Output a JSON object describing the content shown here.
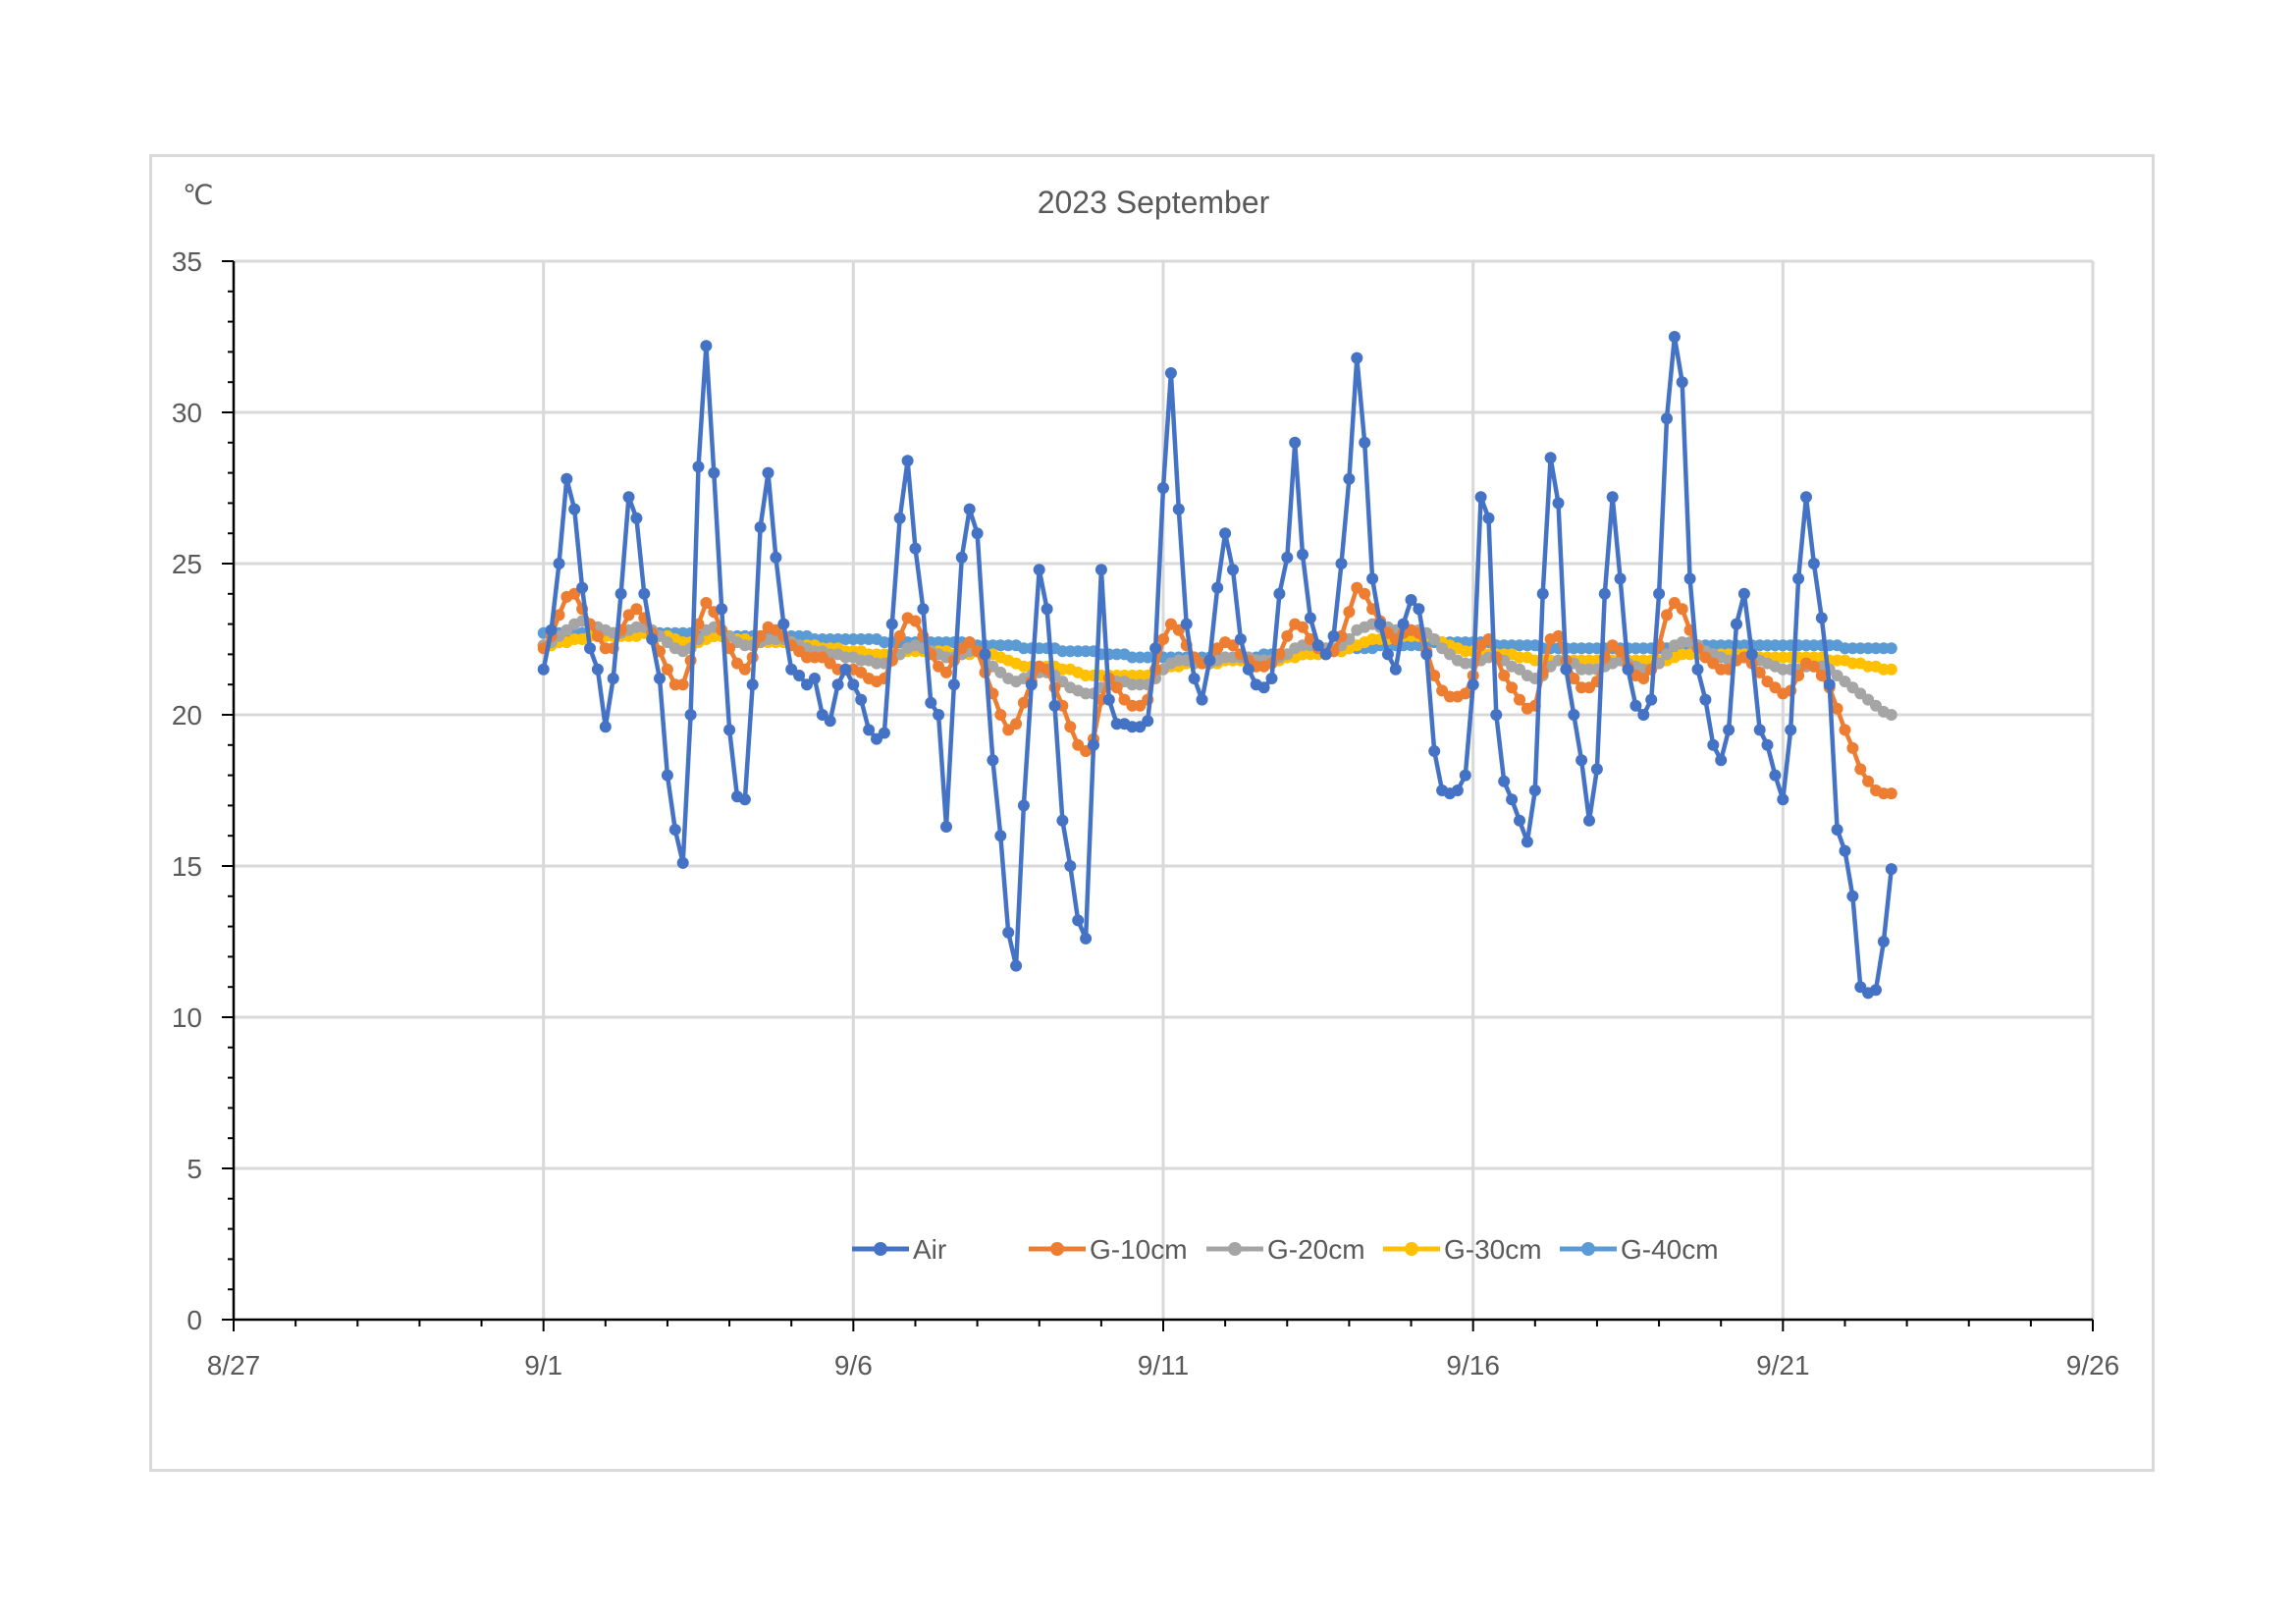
{
  "chart_data": {
    "type": "line",
    "title": "2023 September",
    "ylabel": "℃",
    "xlabel": "",
    "ylim": [
      0,
      35
    ],
    "y_ticks": [
      "0",
      "5",
      "10",
      "15",
      "20",
      "25",
      "30",
      "35"
    ],
    "x_range_days": [
      "2023-08-27",
      "2023-09-26"
    ],
    "x_ticks": [
      "8/27",
      "9/1",
      "9/6",
      "9/11",
      "9/16",
      "9/21",
      "9/26"
    ],
    "grid": true,
    "legend_position": "bottom-inside",
    "x_start_date": "2023-09-01",
    "samples_per_day": 8,
    "series": [
      {
        "name": "Air",
        "color": "#4472C4",
        "values": [
          21.5,
          22.8,
          25,
          27.8,
          26.8,
          24.2,
          22.2,
          21.5,
          19.6,
          21.2,
          24,
          27.2,
          26.5,
          24,
          22.5,
          21.2,
          18,
          16.2,
          15.1,
          20,
          28.2,
          32.2,
          28,
          23.5,
          19.5,
          17.3,
          17.2,
          21,
          26.2,
          28,
          25.2,
          23,
          21.5,
          21.3,
          21,
          21.2,
          20,
          19.8,
          21,
          21.5,
          21,
          20.5,
          19.5,
          19.2,
          19.4,
          23,
          26.5,
          28.4,
          25.5,
          23.5,
          20.4,
          20,
          16.3,
          21,
          25.2,
          26.8,
          26,
          22,
          18.5,
          16,
          12.8,
          11.7,
          17,
          21,
          24.8,
          23.5,
          20.3,
          16.5,
          15,
          13.2,
          12.6,
          19,
          24.8,
          20.5,
          19.7,
          19.7,
          19.6,
          19.6,
          19.8,
          22.2,
          27.5,
          31.3,
          26.8,
          23,
          21.2,
          20.5,
          21.8,
          24.2,
          26,
          24.8,
          22.5,
          21.5,
          21,
          20.9,
          21.2,
          24,
          25.2,
          29,
          25.3,
          23.2,
          22.3,
          22,
          22.6,
          25,
          27.8,
          31.8,
          29,
          24.5,
          23,
          22,
          21.5,
          23,
          23.8,
          23.5,
          22,
          18.8,
          17.5,
          17.4,
          17.5,
          18,
          21,
          27.2,
          26.5,
          20,
          17.8,
          17.2,
          16.5,
          15.8,
          17.5,
          24,
          28.5,
          27,
          21.5,
          20,
          18.5,
          16.5,
          18.2,
          24,
          27.2,
          24.5,
          21.5,
          20.3,
          20,
          20.5,
          24,
          29.8,
          32.5,
          31,
          24.5,
          21.5,
          20.5,
          19,
          18.5,
          19.5,
          23,
          24,
          22,
          19.5,
          19,
          18,
          17.2,
          19.5,
          24.5,
          27.2,
          25,
          23.2,
          21,
          16.2,
          15.5,
          14,
          11,
          10.8,
          10.9,
          12.5,
          14.9
        ]
      },
      {
        "name": "G-10cm",
        "color": "#ED7D31",
        "values": [
          22.2,
          22.6,
          23.3,
          23.9,
          24,
          23.5,
          23,
          22.6,
          22.2,
          22.2,
          22.8,
          23.3,
          23.5,
          23.2,
          22.7,
          22.1,
          21.5,
          21,
          21,
          21.8,
          23,
          23.7,
          23.4,
          22.8,
          22.2,
          21.7,
          21.5,
          21.9,
          22.6,
          22.9,
          22.8,
          22.6,
          22.3,
          22.1,
          21.9,
          21.9,
          21.9,
          21.7,
          21.5,
          21.5,
          21.5,
          21.4,
          21.2,
          21.1,
          21.2,
          21.8,
          22.6,
          23.2,
          23.1,
          22.6,
          22,
          21.6,
          21.4,
          21.8,
          22.2,
          22.4,
          22.1,
          21.4,
          20.7,
          20,
          19.5,
          19.7,
          20.4,
          21.1,
          21.6,
          21.5,
          20.9,
          20.3,
          19.6,
          19,
          18.8,
          19.2,
          20.5,
          21.2,
          20.9,
          20.5,
          20.3,
          20.3,
          20.5,
          21.5,
          22.5,
          23,
          22.8,
          22.3,
          21.9,
          21.7,
          21.8,
          22.2,
          22.4,
          22.3,
          22,
          21.8,
          21.6,
          21.6,
          21.7,
          22,
          22.6,
          23,
          22.9,
          22.5,
          22.2,
          22,
          22.1,
          22.6,
          23.4,
          24.2,
          24,
          23.5,
          23.1,
          22.7,
          22.5,
          22.7,
          22.8,
          22.7,
          22.1,
          21.3,
          20.8,
          20.6,
          20.6,
          20.7,
          21.3,
          22.3,
          22.5,
          21.9,
          21.3,
          20.9,
          20.5,
          20.2,
          20.3,
          21.4,
          22.5,
          22.6,
          21.8,
          21.2,
          20.9,
          20.9,
          21.1,
          21.9,
          22.3,
          22.1,
          21.6,
          21.3,
          21.2,
          21.5,
          22.3,
          23.3,
          23.7,
          23.5,
          22.8,
          22.2,
          21.9,
          21.7,
          21.5,
          21.5,
          21.8,
          21.9,
          21.7,
          21.4,
          21.1,
          20.9,
          20.7,
          20.8,
          21.3,
          21.7,
          21.6,
          21.3,
          20.9,
          20.2,
          19.5,
          18.9,
          18.2,
          17.8,
          17.5,
          17.4,
          17.4
        ]
      },
      {
        "name": "G-20cm",
        "color": "#A5A5A5",
        "values": [
          22.3,
          22.4,
          22.6,
          22.8,
          23,
          23.1,
          23,
          22.9,
          22.8,
          22.7,
          22.7,
          22.8,
          22.9,
          22.9,
          22.8,
          22.6,
          22.4,
          22.2,
          22.1,
          22.2,
          22.5,
          22.8,
          22.9,
          22.8,
          22.6,
          22.4,
          22.3,
          22.3,
          22.4,
          22.5,
          22.5,
          22.5,
          22.4,
          22.3,
          22.2,
          22.1,
          22.1,
          22,
          22,
          21.9,
          21.9,
          21.8,
          21.8,
          21.7,
          21.7,
          21.8,
          22,
          22.2,
          22.3,
          22.2,
          22.1,
          22,
          21.9,
          21.9,
          22,
          22.1,
          22.1,
          21.9,
          21.6,
          21.4,
          21.2,
          21.1,
          21.2,
          21.3,
          21.4,
          21.4,
          21.3,
          21.1,
          20.9,
          20.8,
          20.7,
          20.7,
          20.9,
          21,
          21.1,
          21.1,
          21,
          21,
          21,
          21.2,
          21.5,
          21.7,
          21.8,
          21.8,
          21.7,
          21.7,
          21.7,
          21.8,
          21.9,
          21.9,
          21.9,
          21.9,
          21.8,
          21.8,
          21.8,
          21.9,
          22,
          22.2,
          22.3,
          22.3,
          22.3,
          22.2,
          22.2,
          22.3,
          22.5,
          22.8,
          22.9,
          23,
          22.9,
          22.9,
          22.8,
          22.8,
          22.8,
          22.8,
          22.7,
          22.5,
          22.2,
          22,
          21.8,
          21.7,
          21.7,
          21.8,
          21.9,
          21.9,
          21.8,
          21.6,
          21.5,
          21.3,
          21.2,
          21.3,
          21.6,
          21.8,
          21.8,
          21.7,
          21.5,
          21.5,
          21.5,
          21.6,
          21.7,
          21.8,
          21.7,
          21.6,
          21.5,
          21.5,
          21.7,
          22,
          22.3,
          22.4,
          22.4,
          22.3,
          22.1,
          22,
          21.9,
          21.8,
          21.8,
          21.9,
          21.9,
          21.8,
          21.7,
          21.6,
          21.5,
          21.5,
          21.5,
          21.6,
          21.6,
          21.6,
          21.5,
          21.3,
          21.1,
          20.9,
          20.7,
          20.5,
          20.3,
          20.1,
          20
        ]
      },
      {
        "name": "G-30cm",
        "color": "#FFC000",
        "values": [
          22.3,
          22.3,
          22.4,
          22.4,
          22.5,
          22.5,
          22.6,
          22.6,
          22.6,
          22.6,
          22.6,
          22.6,
          22.6,
          22.7,
          22.7,
          22.6,
          22.6,
          22.5,
          22.4,
          22.4,
          22.4,
          22.5,
          22.6,
          22.6,
          22.6,
          22.5,
          22.5,
          22.4,
          22.4,
          22.4,
          22.4,
          22.4,
          22.4,
          22.3,
          22.3,
          22.3,
          22.2,
          22.2,
          22.2,
          22.1,
          22.1,
          22.1,
          22,
          22,
          22,
          22,
          22,
          22.1,
          22.1,
          22.1,
          22.1,
          22.1,
          22.1,
          22,
          22,
          22,
          22.1,
          22,
          22,
          21.9,
          21.8,
          21.7,
          21.6,
          21.6,
          21.6,
          21.6,
          21.6,
          21.5,
          21.5,
          21.4,
          21.3,
          21.3,
          21.3,
          21.3,
          21.3,
          21.3,
          21.3,
          21.3,
          21.3,
          21.4,
          21.5,
          21.6,
          21.6,
          21.7,
          21.7,
          21.7,
          21.7,
          21.7,
          21.8,
          21.8,
          21.8,
          21.8,
          21.8,
          21.8,
          21.8,
          21.8,
          21.9,
          21.9,
          22,
          22,
          22,
          22.1,
          22.1,
          22.1,
          22.2,
          22.3,
          22.4,
          22.5,
          22.5,
          22.5,
          22.6,
          22.6,
          22.6,
          22.6,
          22.6,
          22.5,
          22.4,
          22.3,
          22.2,
          22.1,
          22.1,
          22,
          22,
          22,
          22,
          22,
          21.9,
          21.9,
          21.8,
          21.8,
          21.8,
          21.8,
          21.8,
          21.8,
          21.8,
          21.8,
          21.8,
          21.8,
          21.8,
          21.8,
          21.8,
          21.8,
          21.8,
          21.8,
          21.8,
          21.8,
          21.9,
          22,
          22,
          22,
          22,
          22,
          22,
          22,
          22,
          22,
          22,
          21.9,
          21.9,
          21.9,
          21.9,
          21.9,
          21.9,
          21.9,
          21.9,
          21.9,
          21.8,
          21.8,
          21.8,
          21.7,
          21.7,
          21.6,
          21.6,
          21.5,
          21.5
        ]
      },
      {
        "name": "G-40cm",
        "color": "#5B9BD5",
        "values": [
          22.7,
          22.7,
          22.7,
          22.7,
          22.7,
          22.7,
          22.7,
          22.7,
          22.7,
          22.7,
          22.7,
          22.7,
          22.7,
          22.7,
          22.7,
          22.7,
          22.7,
          22.7,
          22.7,
          22.7,
          22.6,
          22.6,
          22.6,
          22.6,
          22.6,
          22.6,
          22.6,
          22.6,
          22.6,
          22.6,
          22.6,
          22.6,
          22.6,
          22.6,
          22.6,
          22.5,
          22.5,
          22.5,
          22.5,
          22.5,
          22.5,
          22.5,
          22.5,
          22.5,
          22.4,
          22.4,
          22.4,
          22.4,
          22.4,
          22.4,
          22.4,
          22.4,
          22.4,
          22.4,
          22.4,
          22.4,
          22.3,
          22.3,
          22.3,
          22.3,
          22.3,
          22.3,
          22.2,
          22.2,
          22.2,
          22.2,
          22.2,
          22.1,
          22.1,
          22.1,
          22.1,
          22.1,
          22,
          22,
          22,
          22,
          21.9,
          21.9,
          21.9,
          21.9,
          21.9,
          21.9,
          21.9,
          21.9,
          21.9,
          21.9,
          21.9,
          21.9,
          21.9,
          21.9,
          21.9,
          21.9,
          21.9,
          22,
          22,
          22,
          22,
          22,
          22,
          22.1,
          22.1,
          22.1,
          22.1,
          22.1,
          22.2,
          22.2,
          22.2,
          22.2,
          22.3,
          22.3,
          22.3,
          22.3,
          22.3,
          22.3,
          22.4,
          22.4,
          22.4,
          22.4,
          22.4,
          22.4,
          22.4,
          22.4,
          22.4,
          22.3,
          22.3,
          22.3,
          22.3,
          22.3,
          22.3,
          22.2,
          22.2,
          22.2,
          22.2,
          22.2,
          22.2,
          22.2,
          22.2,
          22.2,
          22.2,
          22.2,
          22.2,
          22.2,
          22.2,
          22.2,
          22.2,
          22.2,
          22.2,
          22.3,
          22.3,
          22.3,
          22.3,
          22.3,
          22.3,
          22.3,
          22.3,
          22.3,
          22.3,
          22.3,
          22.3,
          22.3,
          22.3,
          22.3,
          22.3,
          22.3,
          22.3,
          22.3,
          22.3,
          22.3,
          22.2,
          22.2,
          22.2,
          22.2,
          22.2,
          22.2,
          22.2
        ]
      }
    ]
  }
}
